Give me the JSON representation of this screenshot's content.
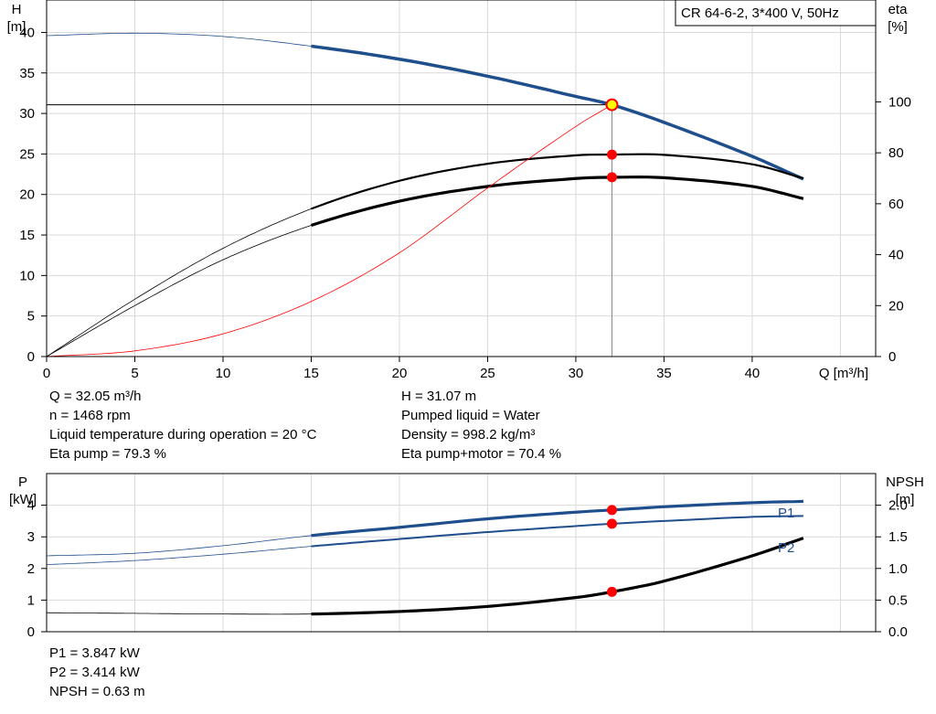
{
  "colors": {
    "blue": "#1f4e8c",
    "black": "#000000",
    "red": "#ff0000",
    "marker_fill": "#ffff00",
    "grid": "#d9d9d9"
  },
  "chart_data": [
    {
      "type": "line",
      "name": "pump-curve",
      "legend_box": "CR 64-6-2, 3*400 V, 50Hz",
      "xlabel": "Q [m³/h]",
      "ylabel": [
        "H",
        "[m]"
      ],
      "y2label": [
        "eta",
        "[%]"
      ],
      "xlim": [
        0,
        47
      ],
      "ylim": [
        0,
        44
      ],
      "y2lim": [
        0,
        140
      ],
      "xticks": [
        0,
        5,
        10,
        15,
        20,
        25,
        30,
        35,
        40
      ],
      "yticks": [
        0,
        5,
        10,
        15,
        20,
        25,
        30,
        35,
        40
      ],
      "y2ticks": [
        0,
        20,
        40,
        60,
        80,
        100
      ],
      "grid": true,
      "duty_point": {
        "q": 32.05,
        "h": 31.07,
        "eta_pump": 79.3,
        "eta_pump_motor": 70.4
      },
      "series": [
        {
          "axis": "left",
          "color": "blue",
          "x": [
            0,
            5,
            10,
            15,
            20,
            25,
            30,
            32.05,
            35,
            40,
            42.9
          ],
          "y": [
            39.6,
            39.9,
            39.5,
            38.3,
            36.7,
            34.6,
            32.1,
            31.07,
            28.9,
            24.7,
            21.9
          ],
          "bold_from": 15
        },
        {
          "axis": "right",
          "color": "black",
          "x": [
            0,
            5,
            10,
            15,
            20,
            25,
            30,
            32.05,
            35,
            40,
            42.9
          ],
          "y": [
            0,
            22.5,
            42.5,
            58,
            69,
            75.7,
            79,
            79.3,
            79.2,
            75.5,
            70
          ],
          "bold_from": 15
        },
        {
          "axis": "right",
          "color": "black",
          "x": [
            0,
            5,
            10,
            15,
            20,
            25,
            30,
            32.05,
            35,
            40,
            42.9
          ],
          "y": [
            0,
            20,
            38,
            51.5,
            61,
            66.8,
            69.9,
            70.4,
            70.2,
            66.8,
            62
          ],
          "bold_from": 15,
          "heavy": true
        },
        {
          "axis": "left",
          "color": "red",
          "thin": true,
          "x": [
            0,
            5,
            10,
            15,
            20,
            25,
            30,
            32.05
          ],
          "y": [
            0,
            0.7,
            2.8,
            6.8,
            12.8,
            20.8,
            28.4,
            31.07
          ]
        }
      ]
    },
    {
      "type": "line",
      "name": "power-npsh",
      "ylabel": [
        "P",
        "[kW]"
      ],
      "y2label": [
        "NPSH",
        "[m]"
      ],
      "xlim": [
        0,
        47
      ],
      "ylim": [
        0,
        5
      ],
      "y2lim": [
        0,
        2.5
      ],
      "yticks": [
        0,
        1,
        2,
        3,
        4
      ],
      "y2ticks": [
        "0.0",
        "0.5",
        "1.0",
        "1.5",
        "2.0"
      ],
      "grid": true,
      "series": [
        {
          "name": "P1",
          "axis": "left",
          "color": "blue",
          "x": [
            0,
            5,
            10,
            15,
            20,
            25,
            30,
            32.05,
            35,
            40,
            42.9
          ],
          "y": [
            2.4,
            2.48,
            2.72,
            3.04,
            3.3,
            3.57,
            3.78,
            3.847,
            3.95,
            4.08,
            4.12
          ],
          "bold_from": 15
        },
        {
          "name": "P2",
          "axis": "left",
          "color": "blue",
          "x": [
            0,
            5,
            10,
            15,
            20,
            25,
            30,
            32.05,
            35,
            40,
            42.9
          ],
          "y": [
            2.12,
            2.25,
            2.45,
            2.7,
            2.93,
            3.15,
            3.34,
            3.414,
            3.5,
            3.63,
            3.66
          ],
          "bold_from": 15
        },
        {
          "axis": "right",
          "color": "black",
          "x": [
            0,
            5,
            10,
            15,
            20,
            25,
            30,
            32.05,
            35,
            40,
            42.9
          ],
          "y": [
            0.3,
            0.29,
            0.28,
            0.28,
            0.32,
            0.4,
            0.54,
            0.63,
            0.8,
            1.2,
            1.48
          ],
          "bold_from": 15,
          "heavy": true
        }
      ],
      "duty_points": {
        "q": 32.05,
        "p1": 3.847,
        "p2": 3.414,
        "npsh": 0.63
      }
    }
  ],
  "info_upper": {
    "q": "Q = 32.05 m³/h",
    "n": "n = 1468 rpm",
    "temp": "Liquid temperature during operation = 20 °C",
    "eta_pump": "Eta pump = 79.3 %",
    "h": "H = 31.07 m",
    "liquid": "Pumped liquid = Water",
    "density": "Density = 998.2 kg/m³",
    "eta_pump_motor": "Eta pump+motor = 70.4 %"
  },
  "info_lower": {
    "p1": "P1 = 3.847 kW",
    "p2": "P2 = 3.414 kW",
    "npsh": "NPSH = 0.63 m"
  }
}
